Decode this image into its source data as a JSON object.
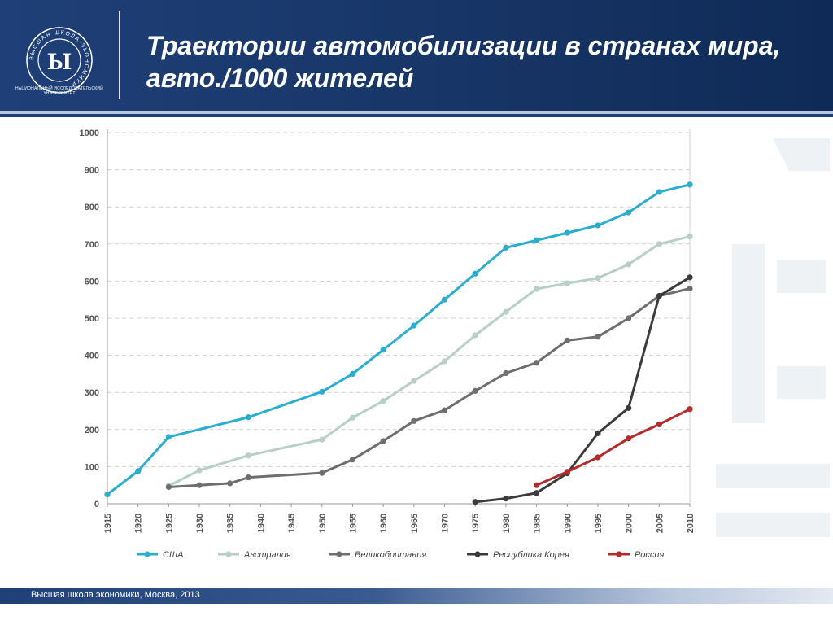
{
  "header": {
    "title": "Траектории автомобилизации в странах мира, авто./1000 жителей",
    "logo": {
      "caption": "НАЦИОНАЛЬНЫЙ ИССЛЕДОВАТЕЛЬСКИЙ УНИВЕРСИТЕТ",
      "ring_text": "ВЫСШАЯ ШКОЛА ЭКОНОМИКИ",
      "icon": "hse-logo-icon"
    }
  },
  "footer": {
    "text": "Высшая школа экономики, Москва, 2013"
  },
  "colors": {
    "header": "#1f3f78",
    "usa": "#2aaed0",
    "australia": "#b8cfc9",
    "uk": "#6e6e6e",
    "korea": "#3b3b3b",
    "russia": "#b52a2a"
  },
  "chart_data": {
    "type": "line",
    "title": "",
    "xlabel": "",
    "ylabel": "",
    "x_ticks": [
      1915,
      1920,
      1925,
      1930,
      1935,
      1940,
      1945,
      1950,
      1955,
      1960,
      1965,
      1970,
      1975,
      1980,
      1985,
      1990,
      1995,
      2000,
      2005,
      2010
    ],
    "y_ticks": [
      0,
      100,
      200,
      300,
      400,
      500,
      600,
      700,
      800,
      900,
      1000
    ],
    "xlim": [
      1915,
      2010
    ],
    "ylim": [
      0,
      1000
    ],
    "grid": "horizontal-dashed",
    "legend_position": "bottom",
    "series": [
      {
        "name": "США",
        "color": "#2aaed0",
        "x": [
          1915,
          1920,
          1925,
          1938,
          1950,
          1955,
          1960,
          1965,
          1970,
          1975,
          1980,
          1985,
          1990,
          1995,
          2000,
          2005,
          2010
        ],
        "y": [
          25,
          88,
          180,
          233,
          302,
          350,
          415,
          480,
          550,
          620,
          690,
          710,
          730,
          750,
          785,
          840,
          860
        ]
      },
      {
        "name": "Австралия",
        "color": "#b8cfc9",
        "x": [
          1925,
          1930,
          1938,
          1950,
          1955,
          1960,
          1965,
          1970,
          1975,
          1980,
          1985,
          1990,
          1995,
          2000,
          2005,
          2010
        ],
        "y": [
          48,
          90,
          130,
          173,
          232,
          277,
          331,
          384,
          454,
          517,
          579,
          594,
          608,
          645,
          700,
          720
        ]
      },
      {
        "name": "Великобритания",
        "color": "#6e6e6e",
        "x": [
          1925,
          1930,
          1935,
          1938,
          1950,
          1955,
          1960,
          1965,
          1970,
          1975,
          1980,
          1985,
          1990,
          1995,
          2000,
          2005,
          2010
        ],
        "y": [
          45,
          50,
          55,
          71,
          83,
          119,
          169,
          223,
          252,
          304,
          352,
          380,
          440,
          450,
          500,
          560,
          580
        ]
      },
      {
        "name": "Республика Корея",
        "color": "#3b3b3b",
        "x": [
          1975,
          1980,
          1985,
          1990,
          1995,
          2000,
          2005,
          2010
        ],
        "y": [
          5,
          14,
          29,
          82,
          190,
          258,
          560,
          610
        ]
      },
      {
        "name": "Россия",
        "color": "#b52a2a",
        "x": [
          1985,
          1990,
          1995,
          2000,
          2005,
          2010
        ],
        "y": [
          50,
          86,
          125,
          176,
          214,
          255
        ]
      }
    ]
  }
}
